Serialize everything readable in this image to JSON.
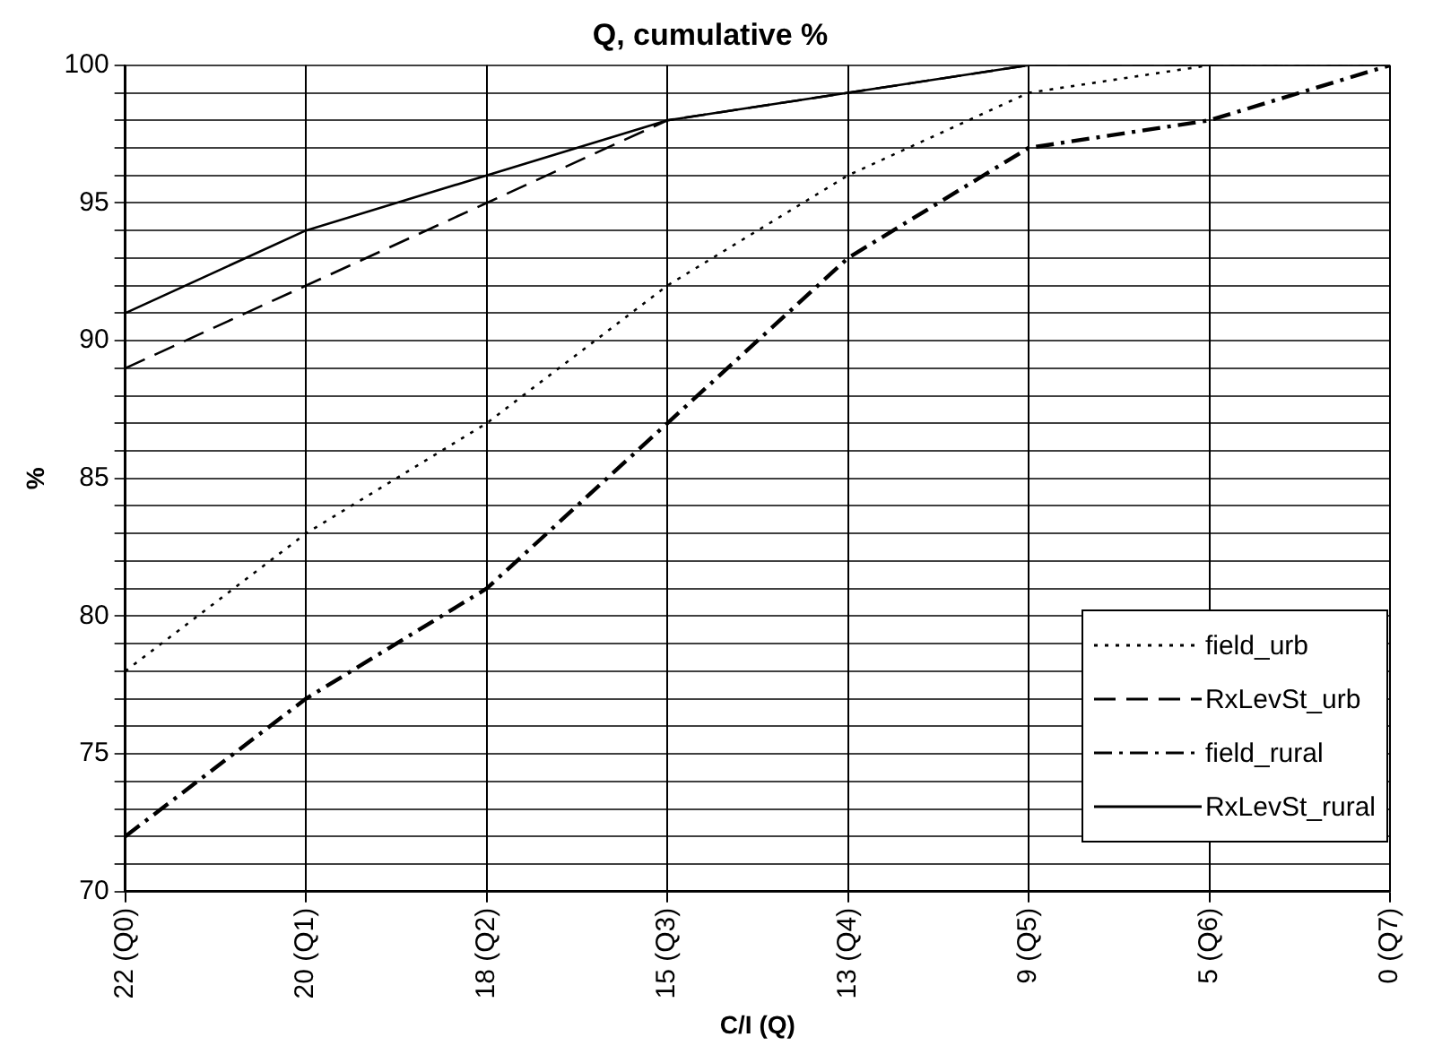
{
  "chart_data": {
    "type": "line",
    "title": "Q, cumulative %",
    "xlabel": "C/I (Q)",
    "ylabel": "%",
    "categories": [
      "22 (Q0)",
      "20 (Q1)",
      "18 (Q2)",
      "15 (Q3)",
      "13 (Q4)",
      "9 (Q5)",
      "5 (Q6)",
      "0 (Q7)"
    ],
    "series": [
      {
        "name": "field_urb",
        "color": "#000000",
        "line_style": "dotted",
        "values": [
          78,
          83,
          87,
          92,
          96,
          99,
          100,
          100
        ]
      },
      {
        "name": "RxLevSt_urb",
        "color": "#000000",
        "line_style": "dashed",
        "values": [
          89,
          92,
          95,
          98,
          99,
          100,
          100,
          100
        ]
      },
      {
        "name": "field_rural",
        "color": "#000000",
        "line_style": "dashdot",
        "values": [
          72,
          77,
          81,
          87,
          93,
          97,
          98,
          100
        ]
      },
      {
        "name": "RxLevSt_rural",
        "color": "#000000",
        "line_style": "solid",
        "values": [
          91,
          94,
          96,
          98,
          99,
          100,
          100,
          100
        ]
      }
    ],
    "ylim": [
      70,
      100
    ],
    "yticks": [
      70,
      {
        "value": 71,
        "label": null
      },
      {
        "value": 72,
        "label": null
      },
      {
        "value": 73,
        "label": null
      },
      {
        "value": 74,
        "label": null
      },
      75,
      {
        "value": 76,
        "label": null
      },
      {
        "value": 77,
        "label": null
      },
      {
        "value": 78,
        "label": null
      },
      {
        "value": 79,
        "label": null
      },
      80,
      {
        "value": 81,
        "label": null
      },
      {
        "value": 82,
        "label": null
      },
      {
        "value": 83,
        "label": null
      },
      {
        "value": 84,
        "label": null
      },
      85,
      {
        "value": 86,
        "label": null
      },
      {
        "value": 87,
        "label": null
      },
      {
        "value": 88,
        "label": null
      },
      {
        "value": 89,
        "label": null
      },
      90,
      {
        "value": 91,
        "label": null
      },
      {
        "value": 92,
        "label": null
      },
      {
        "value": 93,
        "label": null
      },
      {
        "value": 94,
        "label": null
      },
      95,
      {
        "value": 96,
        "label": null
      },
      {
        "value": 97,
        "label": null
      },
      {
        "value": 98,
        "label": null
      },
      {
        "value": 99,
        "label": null
      },
      100
    ],
    "grid": true,
    "legend": "bottom right",
    "marker": "none"
  }
}
